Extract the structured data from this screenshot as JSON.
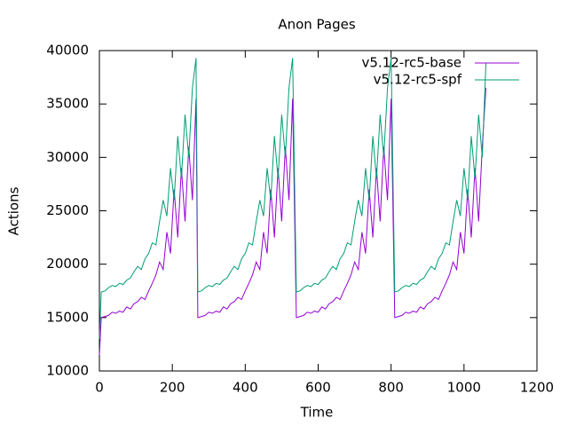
{
  "chart_data": {
    "type": "line",
    "title": "Anon Pages",
    "x_label": "Time",
    "y_label": "Actions",
    "x": [
      0,
      5,
      15,
      25,
      35,
      45,
      55,
      65,
      75,
      85,
      95,
      105,
      115,
      125,
      135,
      145,
      155,
      165,
      175,
      185,
      195,
      205,
      215,
      225,
      235,
      245,
      255,
      265,
      270,
      280,
      290,
      300,
      310,
      320,
      330,
      340,
      350,
      360,
      370,
      380,
      390,
      400,
      410,
      420,
      430,
      440,
      450,
      460,
      470,
      480,
      490,
      500,
      510,
      520,
      530,
      540,
      550,
      560,
      570,
      580,
      590,
      600,
      610,
      620,
      630,
      640,
      650,
      660,
      670,
      680,
      690,
      700,
      710,
      720,
      730,
      740,
      750,
      760,
      770,
      780,
      790,
      800,
      810,
      820,
      830,
      840,
      850,
      860,
      870,
      880,
      890,
      900,
      910,
      920,
      930,
      940,
      950,
      960,
      970,
      980,
      990,
      1000,
      1010,
      1020,
      1030,
      1040,
      1050,
      1060
    ],
    "series": [
      {
        "name": "v5.12-rc5-base",
        "color": "#9400d3",
        "values": [
          11500,
          15000,
          15100,
          15200,
          15500,
          15400,
          15600,
          15500,
          16000,
          15800,
          16300,
          16500,
          16900,
          16700,
          17500,
          18200,
          19000,
          20200,
          19500,
          23000,
          21000,
          27000,
          22500,
          29000,
          24000,
          31000,
          26000,
          35500,
          15000,
          15100,
          15200,
          15500,
          15400,
          15600,
          15500,
          16000,
          15800,
          16300,
          16500,
          16900,
          16700,
          17500,
          18200,
          19000,
          20200,
          19500,
          23000,
          21000,
          27000,
          22500,
          29000,
          24000,
          31000,
          26000,
          35500,
          15000,
          15100,
          15200,
          15500,
          15400,
          15600,
          15500,
          16000,
          15800,
          16300,
          16500,
          16900,
          16700,
          17500,
          18200,
          19000,
          20200,
          19500,
          23000,
          21000,
          27000,
          22500,
          29000,
          24000,
          31000,
          26000,
          35500,
          15000,
          15100,
          15200,
          15500,
          15400,
          15600,
          15500,
          16000,
          15800,
          16300,
          16500,
          16900,
          16700,
          17500,
          18200,
          19000,
          20200,
          19500,
          23000,
          21000,
          27000,
          22500,
          29000,
          24000,
          31000,
          36500
        ]
      },
      {
        "name": "v5.12-rc5-spf",
        "color": "#009e73",
        "values": [
          13000,
          17400,
          17500,
          17800,
          18000,
          17900,
          18200,
          18100,
          18500,
          18700,
          19300,
          19800,
          19500,
          20500,
          21000,
          22000,
          21800,
          24000,
          26000,
          24500,
          29000,
          26000,
          32000,
          28000,
          34000,
          30000,
          36500,
          39300,
          17400,
          17500,
          17800,
          18000,
          17900,
          18200,
          18100,
          18500,
          18700,
          19300,
          19800,
          19500,
          20500,
          21000,
          22000,
          21800,
          24000,
          26000,
          24500,
          29000,
          26000,
          32000,
          28000,
          34000,
          30000,
          36500,
          39300,
          17400,
          17500,
          17800,
          18000,
          17900,
          18200,
          18100,
          18500,
          18700,
          19300,
          19800,
          19500,
          20500,
          21000,
          22000,
          21800,
          24000,
          26000,
          24500,
          29000,
          26000,
          32000,
          28000,
          34000,
          30000,
          36500,
          39300,
          17400,
          17500,
          17800,
          18000,
          17900,
          18200,
          18100,
          18500,
          18700,
          19300,
          19800,
          19500,
          20500,
          21000,
          22000,
          21800,
          24000,
          26000,
          24500,
          29000,
          26000,
          32000,
          28000,
          34000,
          30000,
          38800
        ]
      }
    ],
    "xlim": [
      0,
      1200
    ],
    "xticks": [
      0,
      200,
      400,
      600,
      800,
      1000,
      1200
    ],
    "ylim": [
      10000,
      40000
    ],
    "yticks": [
      10000,
      15000,
      20000,
      25000,
      30000,
      35000,
      40000
    ],
    "legend": "top-right"
  }
}
